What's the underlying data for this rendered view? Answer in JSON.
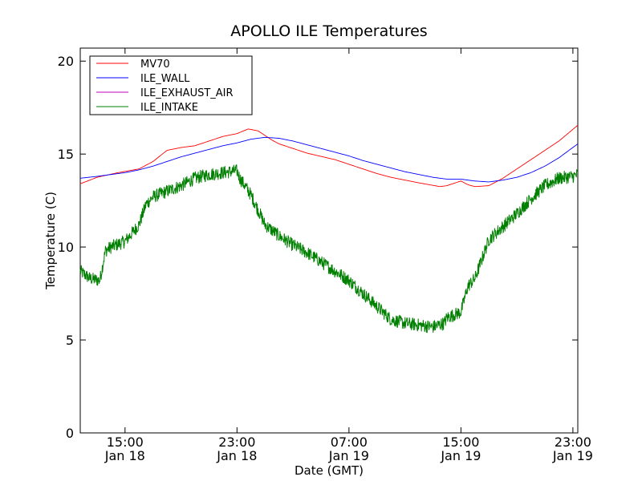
{
  "chart_data": {
    "type": "line",
    "title": "APOLLO ILE Temperatures",
    "xlabel": "Date (GMT)",
    "ylabel": "Temperature (C)",
    "ylim": [
      0,
      20.7
    ],
    "xlim_hours": [
      11.8,
      47.35
    ],
    "x_unit": "hours since 2000-01-18 00:00 GMT",
    "y_ticks": [
      {
        "value": 0,
        "label": "0"
      },
      {
        "value": 5,
        "label": "5"
      },
      {
        "value": 10,
        "label": "10"
      },
      {
        "value": 15,
        "label": "15"
      },
      {
        "value": 20,
        "label": "20"
      }
    ],
    "x_ticks": [
      {
        "value": 15,
        "time": "15:00",
        "date": "Jan 18"
      },
      {
        "value": 23,
        "time": "23:00",
        "date": "Jan 18"
      },
      {
        "value": 31,
        "time": "07:00",
        "date": "Jan 19"
      },
      {
        "value": 39,
        "time": "15:00",
        "date": "Jan 19"
      },
      {
        "value": 47,
        "time": "23:00",
        "date": "Jan 19"
      }
    ],
    "grid": false,
    "legend_position": "top-left",
    "series": [
      {
        "name": "MV70",
        "color": "#ff0000",
        "noise": 0,
        "x": [
          11.8,
          13.0,
          14.5,
          16.0,
          17.0,
          18.0,
          19.0,
          20.0,
          21.0,
          22.0,
          23.0,
          23.8,
          24.5,
          25.0,
          25.5,
          26.0,
          27.0,
          28.0,
          30.0,
          32.0,
          33.0,
          34.0,
          36.0,
          37.5,
          38.0,
          39.0,
          39.5,
          40.0,
          41.0,
          42.0,
          43.0,
          44.0,
          45.0,
          46.0,
          47.35
        ],
        "values": [
          13.4,
          13.75,
          14.0,
          14.2,
          14.6,
          15.2,
          15.35,
          15.45,
          15.7,
          15.95,
          16.1,
          16.35,
          16.25,
          16.0,
          15.75,
          15.55,
          15.3,
          15.05,
          14.7,
          14.2,
          13.95,
          13.75,
          13.45,
          13.25,
          13.3,
          13.55,
          13.35,
          13.25,
          13.3,
          13.7,
          14.2,
          14.7,
          15.2,
          15.7,
          16.55
        ]
      },
      {
        "name": "ILE_WALL",
        "color": "#0000ff",
        "noise": 0,
        "x": [
          11.8,
          13.0,
          14.0,
          15.0,
          16.0,
          17.0,
          18.0,
          19.0,
          20.0,
          21.0,
          22.0,
          23.0,
          24.0,
          25.0,
          26.0,
          27.0,
          28.0,
          29.0,
          30.0,
          31.0,
          32.0,
          33.0,
          34.0,
          35.0,
          36.0,
          37.0,
          38.0,
          39.0,
          40.0,
          41.0,
          42.0,
          43.0,
          44.0,
          45.0,
          46.0,
          47.35
        ],
        "values": [
          13.7,
          13.8,
          13.9,
          14.0,
          14.15,
          14.35,
          14.6,
          14.85,
          15.05,
          15.25,
          15.45,
          15.6,
          15.8,
          15.9,
          15.85,
          15.7,
          15.5,
          15.3,
          15.1,
          14.9,
          14.65,
          14.45,
          14.25,
          14.05,
          13.9,
          13.75,
          13.65,
          13.65,
          13.55,
          13.5,
          13.6,
          13.75,
          14.0,
          14.35,
          14.8,
          15.55
        ]
      },
      {
        "name": "ILE_EXHAUST_AIR",
        "color": "#bf00bf",
        "noise": 0,
        "x": [],
        "values": []
      },
      {
        "name": "ILE_INTAKE",
        "color": "#008000",
        "noise": 0.35,
        "x": [
          11.8,
          12.5,
          13.2,
          13.6,
          14.0,
          15.0,
          16.0,
          16.5,
          17.0,
          18.0,
          19.0,
          20.0,
          21.0,
          22.0,
          23.0,
          23.2,
          24.0,
          24.5,
          25.0,
          26.0,
          27.0,
          28.0,
          29.0,
          30.0,
          31.0,
          32.0,
          33.0,
          34.0,
          35.0,
          36.0,
          37.0,
          37.8,
          38.0,
          39.0,
          39.5,
          40.0,
          41.0,
          42.0,
          43.0,
          44.0,
          45.0,
          46.0,
          47.0,
          47.35
        ],
        "values": [
          8.7,
          8.3,
          8.2,
          9.8,
          10.0,
          10.3,
          11.2,
          12.3,
          12.7,
          13.0,
          13.3,
          13.7,
          13.9,
          14.0,
          14.1,
          13.7,
          12.8,
          12.0,
          11.2,
          10.6,
          10.1,
          9.7,
          9.2,
          8.7,
          8.2,
          7.5,
          6.8,
          6.1,
          5.9,
          5.8,
          5.7,
          5.9,
          6.2,
          6.5,
          7.9,
          8.3,
          10.4,
          11.1,
          11.8,
          12.6,
          13.3,
          13.7,
          13.8,
          13.9
        ]
      }
    ]
  }
}
